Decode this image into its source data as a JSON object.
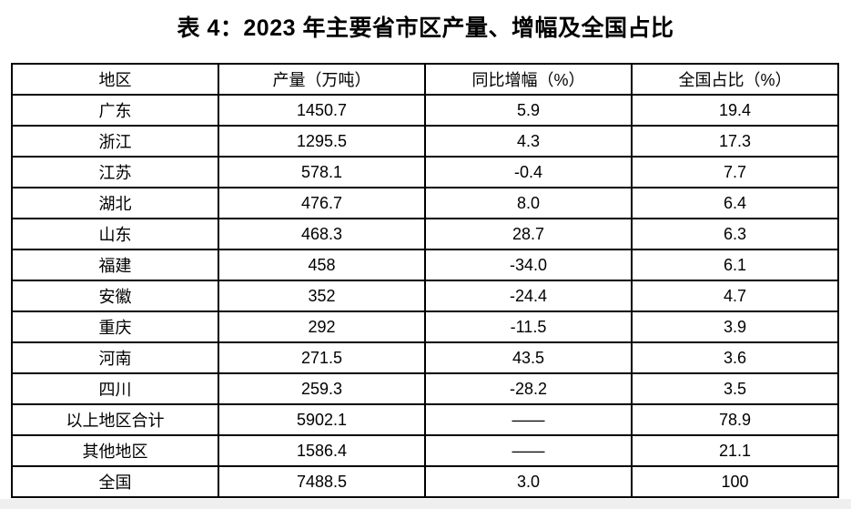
{
  "title": "表 4：2023 年主要省市区产量、增幅及全国占比",
  "colors": {
    "border": "#000000",
    "text": "#000000",
    "background": "#ffffff",
    "bottom_strip": "#efefef"
  },
  "chart_data": {
    "type": "table",
    "title": "表 4：2023 年主要省市区产量、增幅及全国占比",
    "columns": [
      "地区",
      "产量（万吨）",
      "同比增幅（%）",
      "全国占比（%）"
    ],
    "rows": [
      [
        "广东",
        "1450.7",
        "5.9",
        "19.4"
      ],
      [
        "浙江",
        "1295.5",
        "4.3",
        "17.3"
      ],
      [
        "江苏",
        "578.1",
        "-0.4",
        "7.7"
      ],
      [
        "湖北",
        "476.7",
        "8.0",
        "6.4"
      ],
      [
        "山东",
        "468.3",
        "28.7",
        "6.3"
      ],
      [
        "福建",
        "458",
        "-34.0",
        "6.1"
      ],
      [
        "安徽",
        "352",
        "-24.4",
        "4.7"
      ],
      [
        "重庆",
        "292",
        "-11.5",
        "3.9"
      ],
      [
        "河南",
        "271.5",
        "43.5",
        "3.6"
      ],
      [
        "四川",
        "259.3",
        "-28.2",
        "3.5"
      ],
      [
        "以上地区合计",
        "5902.1",
        "——",
        "78.9"
      ],
      [
        "其他地区",
        "1586.4",
        "——",
        "21.1"
      ],
      [
        "全国",
        "7488.5",
        "3.0",
        "100"
      ]
    ],
    "notes": {
      "placeholder_dash": "——",
      "layout": "4 equal-width columns, all cells center-aligned, solid black grid"
    }
  }
}
